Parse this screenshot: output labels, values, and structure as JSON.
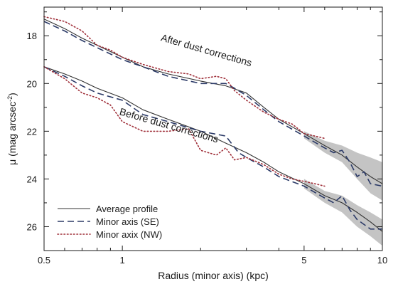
{
  "chart_data": {
    "type": "line",
    "xlabel": "Radius (minor axis)  (kpc)",
    "ylabel": "μ  (mag arcsec",
    "ylabel_sup": "-2",
    "xscale": "log",
    "xlim": [
      0.5,
      10
    ],
    "ylim": [
      27.0,
      16.8
    ],
    "y_inverted": true,
    "grid": false,
    "x_ticks": [
      {
        "value": 0.5,
        "label": "0.5"
      },
      {
        "value": 1,
        "label": "1"
      },
      {
        "value": 5,
        "label": "5"
      },
      {
        "value": 10,
        "label": "10"
      }
    ],
    "x_minor_ticks": [
      0.6,
      0.7,
      0.8,
      0.9,
      2,
      3,
      4,
      6,
      7,
      8,
      9
    ],
    "y_ticks": [
      {
        "value": 18,
        "label": "18"
      },
      {
        "value": 20,
        "label": "20"
      },
      {
        "value": 22,
        "label": "22"
      },
      {
        "value": 24,
        "label": "24"
      },
      {
        "value": 26,
        "label": "26"
      }
    ],
    "legend": {
      "placement": "bottom-left",
      "entries": [
        {
          "label": "Average profile",
          "style": "solid"
        },
        {
          "label": "Minor axis (SE)",
          "style": "dashed"
        },
        {
          "label": "Minor axix (NW)",
          "style": "dotted"
        }
      ]
    },
    "annotations": [
      {
        "text": "After dust corrections",
        "x": 1.4,
        "y": 18.2,
        "angle": 16
      },
      {
        "text": "Before dust corrections",
        "x": 0.97,
        "y": 21.3,
        "angle": 16
      }
    ],
    "colors": {
      "average": "#333333",
      "se": "#2b3a67",
      "nw": "#a0303a",
      "band": "#c4c4c4"
    },
    "profiles": [
      {
        "group": "after",
        "average": {
          "x": [
            0.5,
            0.6,
            0.7,
            0.8,
            1.0,
            1.2,
            1.5,
            2.0,
            2.5,
            3.0,
            3.5,
            4.0,
            5.0,
            6.0,
            7.0,
            8.0,
            9.0,
            10.0
          ],
          "y": [
            17.3,
            17.7,
            18.1,
            18.4,
            18.9,
            19.3,
            19.6,
            19.9,
            20.1,
            20.4,
            21.0,
            21.5,
            22.1,
            22.6,
            23.0,
            23.5,
            23.9,
            24.2
          ]
        },
        "se": {
          "x": [
            0.5,
            0.6,
            0.7,
            0.8,
            1.0,
            1.2,
            1.5,
            2.0,
            2.5,
            2.7,
            3.0,
            3.5,
            4.0,
            5.0,
            6.0,
            6.5,
            7.0,
            7.5,
            8.0,
            8.5,
            9.0,
            10.0
          ],
          "y": [
            17.4,
            17.8,
            18.2,
            18.5,
            19.0,
            19.3,
            19.7,
            20.0,
            20.0,
            20.2,
            20.5,
            21.1,
            21.6,
            22.2,
            22.7,
            22.9,
            22.8,
            23.3,
            23.9,
            23.7,
            24.2,
            24.3
          ]
        },
        "nw": {
          "x": [
            0.5,
            0.6,
            0.7,
            0.8,
            0.9,
            1.0,
            1.2,
            1.5,
            1.8,
            2.0,
            2.3,
            2.5,
            2.7,
            3.0,
            3.5,
            4.0,
            4.5,
            5.0,
            5.5,
            6.0
          ],
          "y": [
            17.2,
            17.4,
            17.8,
            18.4,
            18.6,
            18.9,
            19.2,
            19.5,
            19.6,
            19.8,
            19.7,
            19.8,
            20.3,
            20.7,
            21.2,
            21.5,
            21.7,
            22.1,
            22.2,
            22.3
          ]
        },
        "band": {
          "x": [
            5.0,
            6.0,
            7.0,
            8.0,
            9.0,
            10.0
          ],
          "lo": [
            22.0,
            22.4,
            22.6,
            22.9,
            23.1,
            23.3
          ],
          "hi": [
            22.3,
            22.9,
            23.3,
            24.0,
            24.6,
            24.9
          ]
        }
      },
      {
        "group": "before",
        "average": {
          "x": [
            0.5,
            0.6,
            0.7,
            0.8,
            1.0,
            1.2,
            1.5,
            2.0,
            2.5,
            3.0,
            3.5,
            4.0,
            5.0,
            6.0,
            7.0,
            8.0,
            9.0,
            10.0
          ],
          "y": [
            19.3,
            19.6,
            19.9,
            20.2,
            20.6,
            21.1,
            21.5,
            22.0,
            22.5,
            22.9,
            23.3,
            23.7,
            24.2,
            24.7,
            25.0,
            25.4,
            25.8,
            26.2
          ]
        },
        "se": {
          "x": [
            0.5,
            0.6,
            0.7,
            0.8,
            1.0,
            1.2,
            1.5,
            2.0,
            2.5,
            2.8,
            3.0,
            3.5,
            4.0,
            5.0,
            6.0,
            6.5,
            7.0,
            7.5,
            8.0,
            9.0,
            10.0
          ],
          "y": [
            19.3,
            19.7,
            20.1,
            20.4,
            20.7,
            21.3,
            21.6,
            22.0,
            22.2,
            22.9,
            23.1,
            23.5,
            23.9,
            24.3,
            24.8,
            25.0,
            24.7,
            25.3,
            25.7,
            26.1,
            26.1
          ]
        },
        "nw": {
          "x": [
            0.5,
            0.6,
            0.7,
            0.8,
            0.9,
            1.0,
            1.2,
            1.5,
            1.8,
            2.0,
            2.3,
            2.5,
            2.7,
            3.0,
            3.5,
            4.0,
            4.5,
            5.0,
            5.5,
            6.0
          ],
          "y": [
            19.3,
            19.8,
            20.4,
            20.6,
            20.9,
            21.6,
            22.0,
            22.0,
            21.9,
            22.8,
            23.0,
            22.7,
            23.2,
            23.1,
            23.4,
            23.8,
            24.0,
            24.1,
            24.2,
            24.3
          ]
        },
        "band": {
          "x": [
            5.0,
            6.0,
            7.0,
            8.0,
            9.0,
            10.0
          ],
          "lo": [
            24.0,
            24.5,
            24.7,
            25.1,
            25.4,
            25.7
          ],
          "hi": [
            24.4,
            25.0,
            25.4,
            26.0,
            26.4,
            26.8
          ]
        }
      }
    ]
  }
}
